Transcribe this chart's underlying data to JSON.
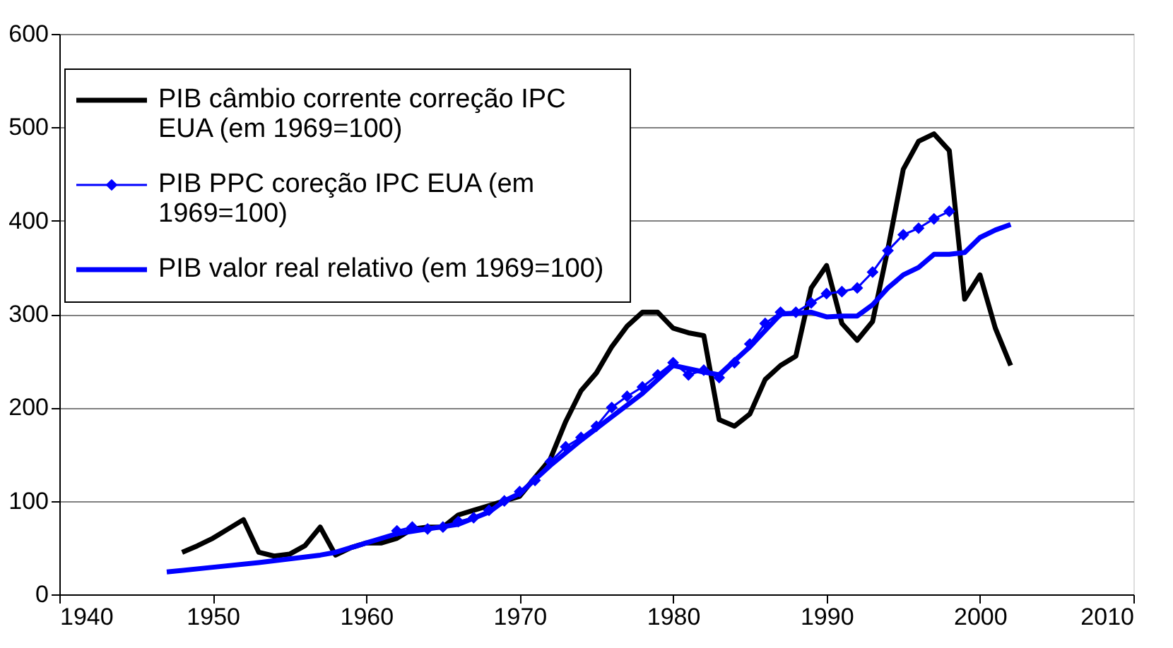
{
  "chart_data": {
    "type": "line",
    "xlim": [
      1940,
      2010
    ],
    "xticks": [
      1940,
      1950,
      1960,
      1970,
      1980,
      1990,
      2000,
      2010
    ],
    "ylim": [
      0,
      600
    ],
    "yticks": [
      0,
      100,
      200,
      300,
      400,
      500,
      600
    ],
    "grid": "y",
    "legend": "top left",
    "line_style": "solid",
    "series": [
      {
        "name": "PIB câmbio corrente correção IPC EUA (em 1969=100)",
        "color": "#000000",
        "marker": "none",
        "x": [
          1948,
          1949,
          1950,
          1951,
          1952,
          1953,
          1954,
          1955,
          1956,
          1957,
          1958,
          1959,
          1960,
          1961,
          1962,
          1963,
          1964,
          1965,
          1966,
          1967,
          1968,
          1969,
          1970,
          1971,
          1972,
          1973,
          1974,
          1975,
          1976,
          1977,
          1978,
          1979,
          1980,
          1981,
          1982,
          1983,
          1984,
          1985,
          1986,
          1987,
          1988,
          1989,
          1990,
          1991,
          1992,
          1993,
          1994,
          1995,
          1996,
          1997,
          1998,
          1999,
          2000,
          2001,
          2002
        ],
        "values": [
          45,
          52,
          60,
          70,
          80,
          45,
          41,
          43,
          52,
          72,
          42,
          50,
          55,
          55,
          60,
          70,
          72,
          72,
          85,
          90,
          95,
          100,
          105,
          125,
          145,
          185,
          218,
          237,
          265,
          287,
          302,
          302,
          285,
          280,
          277,
          187,
          180,
          193,
          230,
          245,
          255,
          328,
          352,
          290,
          272,
          292,
          370,
          455,
          485,
          493,
          475,
          316,
          342,
          285,
          245
        ]
      },
      {
        "name": "PIB PPC coreção IPC EUA (em 1969=100)",
        "color": "#0000ff",
        "marker": "diamond",
        "x": [
          1962,
          1963,
          1964,
          1965,
          1966,
          1967,
          1968,
          1969,
          1970,
          1971,
          1972,
          1973,
          1974,
          1975,
          1976,
          1977,
          1978,
          1979,
          1980,
          1981,
          1982,
          1983,
          1984,
          1985,
          1986,
          1987,
          1988,
          1989,
          1990,
          1991,
          1992,
          1993,
          1994,
          1995,
          1996,
          1997,
          1998
        ],
        "values": [
          68,
          72,
          70,
          72,
          78,
          82,
          90,
          100,
          110,
          122,
          142,
          158,
          168,
          180,
          200,
          212,
          222,
          235,
          248,
          235,
          240,
          232,
          248,
          268,
          290,
          302,
          302,
          312,
          322,
          324,
          328,
          345,
          368,
          385,
          392,
          402,
          410
        ]
      },
      {
        "name": "PIB valor real relativo (em 1969=100)",
        "color": "#0000ff",
        "marker": "none",
        "x": [
          1947,
          1950,
          1953,
          1955,
          1957,
          1958,
          1960,
          1962,
          1964,
          1966,
          1968,
          1969,
          1970,
          1972,
          1974,
          1976,
          1978,
          1980,
          1982,
          1983,
          1985,
          1987,
          1989,
          1990,
          1991,
          1992,
          1993,
          1994,
          1995,
          1996,
          1997,
          1998,
          1999,
          2000,
          2001,
          2002
        ],
        "values": [
          24,
          29,
          34,
          38,
          42,
          45,
          55,
          65,
          70,
          75,
          88,
          100,
          108,
          138,
          165,
          190,
          215,
          245,
          238,
          235,
          265,
          300,
          302,
          297,
          298,
          298,
          310,
          328,
          342,
          350,
          364,
          364,
          366,
          382,
          390,
          396
        ]
      }
    ]
  }
}
